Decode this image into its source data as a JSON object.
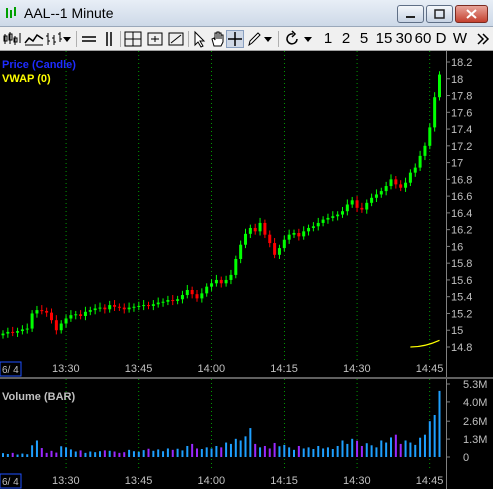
{
  "window": {
    "title": "AAL--1 Minute"
  },
  "toolbar": {
    "timeframes": [
      "1",
      "2",
      "5",
      "15",
      "30",
      "60",
      "D",
      "W"
    ]
  },
  "price_pane": {
    "legend_price": "Price (Candle)",
    "legend_vwap": "VWAP (0)",
    "legend_price_color": "#1e2cff",
    "legend_vwap_color": "#ffff00"
  },
  "volume_pane": {
    "legend": "Volume (BAR)"
  },
  "date_tag": "6/ 4",
  "colors": {
    "up": "#00ff00",
    "down": "#ff0000",
    "volume_blue": "#1ea0ff",
    "volume_purple": "#9a28ff",
    "axis_text": "#c0c0c0",
    "vwap": "#ffff00"
  },
  "chart_data": [
    {
      "type": "candlestick",
      "title": "Price (Candle)",
      "x_tick_labels": [
        "13:30",
        "13:45",
        "14:00",
        "14:15",
        "14:30",
        "14:45"
      ],
      "y_tick_labels": [
        "18.2",
        "18",
        "17.8",
        "17.6",
        "17.4",
        "17.2",
        "17",
        "16.8",
        "16.6",
        "16.4",
        "16.2",
        "16",
        "15.8",
        "15.6",
        "15.4",
        "15.2",
        "15",
        "14.8"
      ],
      "ylim": [
        14.8,
        18.2
      ],
      "close": [
        14.96,
        14.98,
        14.97,
        14.99,
        15.01,
        15.02,
        15.2,
        15.24,
        15.23,
        15.21,
        15.12,
        15.0,
        15.08,
        15.14,
        15.18,
        15.19,
        15.17,
        15.22,
        15.24,
        15.26,
        15.27,
        15.25,
        15.3,
        15.28,
        15.27,
        15.25,
        15.27,
        15.28,
        15.29,
        15.3,
        15.29,
        15.31,
        15.33,
        15.34,
        15.36,
        15.35,
        15.37,
        15.42,
        15.48,
        15.43,
        15.38,
        15.44,
        15.52,
        15.56,
        15.6,
        15.56,
        15.6,
        15.66,
        15.85,
        16.02,
        16.15,
        16.22,
        16.18,
        16.28,
        16.14,
        16.04,
        15.9,
        15.98,
        16.08,
        16.14,
        16.16,
        16.12,
        16.18,
        16.22,
        16.24,
        16.28,
        16.32,
        16.34,
        16.36,
        16.38,
        16.42,
        16.5,
        16.55,
        16.46,
        16.44,
        16.52,
        16.58,
        16.62,
        16.66,
        16.72,
        16.8,
        16.74,
        16.7,
        16.76,
        16.88,
        16.94,
        17.08,
        17.2,
        17.42,
        17.78,
        18.05
      ],
      "vwap": {
        "x_start_index": 84,
        "start": 14.8,
        "end": 14.88
      }
    },
    {
      "type": "bar",
      "title": "Volume (BAR)",
      "x_tick_labels": [
        "13:30",
        "13:45",
        "14:00",
        "14:15",
        "14:30",
        "14:45"
      ],
      "y_tick_labels": [
        "5.3M",
        "4.0M",
        "2.6M",
        "1.3M",
        "0"
      ],
      "ylim": [
        0,
        5.3
      ],
      "unit": "M",
      "values": [
        0.28,
        0.22,
        0.3,
        0.18,
        0.25,
        0.2,
        0.85,
        1.2,
        0.65,
        0.3,
        0.45,
        0.32,
        0.78,
        0.7,
        0.55,
        0.4,
        0.48,
        0.3,
        0.4,
        0.35,
        0.42,
        0.48,
        0.45,
        0.4,
        0.3,
        0.35,
        0.52,
        0.42,
        0.38,
        0.5,
        0.6,
        0.45,
        0.55,
        0.42,
        0.62,
        0.52,
        0.6,
        0.48,
        0.8,
        0.95,
        0.62,
        0.58,
        0.7,
        0.62,
        0.8,
        0.7,
        1.05,
        0.95,
        1.32,
        1.2,
        1.5,
        2.1,
        0.95,
        0.7,
        0.8,
        0.62,
        1.02,
        0.78,
        0.88,
        0.7,
        0.52,
        0.8,
        0.62,
        0.7,
        0.58,
        0.8,
        0.62,
        0.7,
        0.58,
        0.8,
        1.2,
        0.95,
        1.32,
        1.18,
        0.8,
        1.0,
        0.85,
        0.7,
        1.2,
        1.05,
        1.42,
        1.62,
        0.95,
        1.2,
        1.05,
        0.88,
        1.4,
        1.62,
        2.6,
        3.05,
        4.8
      ]
    }
  ]
}
